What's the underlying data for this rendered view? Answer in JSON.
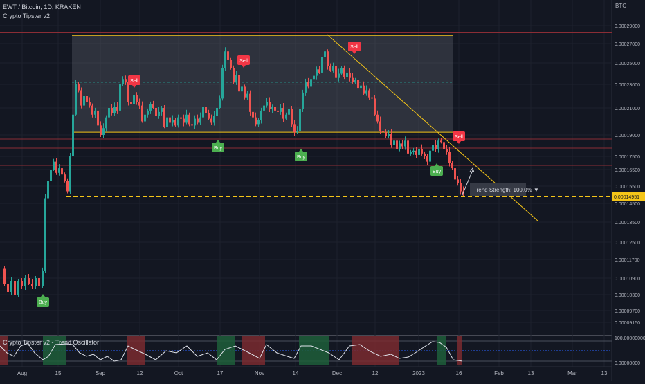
{
  "header": {
    "symbol_line": "EWT / Bitcoin, 1D, KRAKEN",
    "indicator_line": "Crypto Tipster v2",
    "oscillator_title": "Crypto Tipster v2 - Trend Oscillator",
    "currency": "BTC"
  },
  "price_axis": {
    "ticks": [
      "0.00029000",
      "0.00027000",
      "0.00025000",
      "0.00023000",
      "0.00021000",
      "0.00019000",
      "0.00017500",
      "0.00016500",
      "0.00015500",
      "0.00014500",
      "0.00013500",
      "0.00012500",
      "0.00011700",
      "0.00010900",
      "0.00010300",
      "0.00009700",
      "0.00009150"
    ],
    "current_price": "0.00014951",
    "current_price_color": "#f5c518"
  },
  "oscillator_axis": {
    "ticks": [
      "100.00000000",
      "0.00000000"
    ]
  },
  "time_axis": {
    "labels": [
      "Aug",
      "15",
      "Sep",
      "12",
      "Oct",
      "17",
      "Nov",
      "14",
      "Dec",
      "12",
      "2023",
      "16",
      "Feb",
      "13",
      "Mar",
      "13"
    ]
  },
  "signals": [
    {
      "label": "Buy",
      "type": "buy"
    },
    {
      "label": "Buy",
      "type": "buy"
    },
    {
      "label": "Buy",
      "type": "buy"
    },
    {
      "label": "Buy",
      "type": "buy"
    },
    {
      "label": "Sell",
      "type": "sell"
    },
    {
      "label": "Sell",
      "type": "sell"
    },
    {
      "label": "Sell",
      "type": "sell"
    },
    {
      "label": "Sell",
      "type": "sell"
    }
  ],
  "trend_strength": {
    "label": "Trend Strength: 100.0% ▼"
  },
  "colors": {
    "background": "#131722",
    "up": "#26a69a",
    "down": "#ef5350",
    "buy": "#4caf50",
    "sell": "#f23645",
    "trendline": "#f5c518",
    "range_box": "rgba(120,123,134,0.28)"
  },
  "chart_data": {
    "type": "candlestick",
    "title": "EWT / Bitcoin, 1D, KRAKEN",
    "ylabel": "BTC",
    "ylim": [
      9e-05,
      0.0003
    ],
    "price_series": [
      {
        "name": "EWT / Bitcoin",
        "approx_path": [
          [
            0,
            0.000113
          ],
          [
            5,
            0.000107
          ],
          [
            10,
            0.000104
          ],
          [
            15,
            0.000108
          ],
          [
            20,
            0.000103
          ],
          [
            25,
            0.000108
          ],
          [
            30,
            0.000106
          ],
          [
            35,
            0.000109
          ],
          [
            40,
            0.000107
          ],
          [
            45,
            0.000106
          ],
          [
            50,
            0.000109
          ],
          [
            55,
            0.000106
          ],
          [
            60,
            0.000112
          ],
          [
            64,
            0.000148
          ],
          [
            68,
            0.000158
          ],
          [
            72,
            0.000165
          ],
          [
            76,
            0.000171
          ],
          [
            80,
            0.000163
          ],
          [
            84,
            0.000166
          ],
          [
            88,
            0.000162
          ],
          [
            92,
            0.000158
          ],
          [
            96,
            0.000152
          ],
          [
            100,
            0.000175
          ],
          [
            104,
            0.000205
          ],
          [
            108,
            0.00023
          ],
          [
            112,
            0.000225
          ],
          [
            116,
            0.000212
          ],
          [
            120,
            0.00022
          ],
          [
            124,
            0.000215
          ],
          [
            128,
            0.000212
          ],
          [
            132,
            0.000205
          ],
          [
            136,
            0.000208
          ],
          [
            140,
            0.000197
          ],
          [
            144,
            0.00019
          ],
          [
            148,
            0.000195
          ],
          [
            152,
            0.000203
          ],
          [
            156,
            0.00021
          ],
          [
            160,
            0.000206
          ],
          [
            164,
            0.000211
          ],
          [
            168,
            0.000208
          ],
          [
            172,
            0.00023
          ],
          [
            176,
            0.000235
          ],
          [
            180,
            0.000232
          ],
          [
            184,
            0.000215
          ],
          [
            188,
            0.000213
          ],
          [
            192,
            0.000221
          ],
          [
            196,
            0.000215
          ],
          [
            200,
            0.000212
          ],
          [
            204,
            0.0002
          ],
          [
            208,
            0.000205
          ],
          [
            212,
            0.000208
          ],
          [
            216,
            0.000213
          ],
          [
            220,
            0.00021
          ],
          [
            224,
            0.000204
          ],
          [
            228,
            0.000207
          ],
          [
            232,
            0.00021
          ],
          [
            236,
            0.000196
          ],
          [
            240,
            0.000203
          ],
          [
            244,
            0.000199
          ],
          [
            248,
            0.000201
          ],
          [
            252,
            0.000197
          ],
          [
            256,
            0.000203
          ],
          [
            260,
            0.000202
          ],
          [
            264,
            0.000199
          ],
          [
            268,
            0.000205
          ],
          [
            272,
            0.000198
          ],
          [
            276,
            0.000197
          ],
          [
            280,
            0.000202
          ],
          [
            284,
            0.000199
          ],
          [
            288,
            0.000203
          ],
          [
            292,
            0.000211
          ],
          [
            296,
            0.000206
          ],
          [
            300,
            0.000202
          ],
          [
            304,
            0.000199
          ],
          [
            308,
            0.000204
          ],
          [
            312,
            0.00021
          ],
          [
            316,
            0.000218
          ],
          [
            320,
            0.000245
          ],
          [
            324,
            0.000262
          ],
          [
            328,
            0.000253
          ],
          [
            332,
            0.000245
          ],
          [
            336,
            0.000232
          ],
          [
            340,
            0.000239
          ],
          [
            344,
            0.000224
          ],
          [
            348,
            0.000228
          ],
          [
            352,
            0.000219
          ],
          [
            356,
            0.000222
          ],
          [
            360,
            0.000207
          ],
          [
            364,
            0.000203
          ],
          [
            368,
            0.000198
          ],
          [
            372,
            0.000201
          ],
          [
            376,
            0.000208
          ],
          [
            380,
            0.000212
          ],
          [
            384,
            0.000215
          ],
          [
            388,
            0.000209
          ],
          [
            392,
            0.000211
          ],
          [
            396,
            0.000208
          ],
          [
            400,
            0.000207
          ],
          [
            404,
            0.00021
          ],
          [
            408,
            0.000202
          ],
          [
            412,
            0.000205
          ],
          [
            416,
            0.000209
          ],
          [
            420,
            0.000198
          ],
          [
            424,
            0.000192
          ],
          [
            428,
            0.000193
          ],
          [
            432,
            0.000209
          ],
          [
            436,
            0.000223
          ],
          [
            440,
            0.000232
          ],
          [
            444,
            0.000228
          ],
          [
            448,
            0.000235
          ],
          [
            452,
            0.000238
          ],
          [
            456,
            0.000244
          ],
          [
            460,
            0.000241
          ],
          [
            464,
            0.000256
          ],
          [
            468,
            0.000262
          ],
          [
            472,
            0.000247
          ],
          [
            476,
            0.000243
          ],
          [
            480,
            0.000247
          ],
          [
            484,
            0.000236
          ],
          [
            488,
            0.00024
          ],
          [
            492,
            0.000245
          ],
          [
            496,
            0.000237
          ],
          [
            500,
            0.000241
          ],
          [
            504,
            0.000236
          ],
          [
            508,
            0.000232
          ],
          [
            512,
            0.000234
          ],
          [
            516,
            0.000227
          ],
          [
            520,
            0.000229
          ],
          [
            524,
            0.000222
          ],
          [
            528,
            0.000225
          ],
          [
            532,
            0.000219
          ],
          [
            536,
            0.000218
          ],
          [
            540,
            0.000205
          ],
          [
            544,
            0.0002
          ],
          [
            548,
            0.000193
          ],
          [
            552,
            0.000192
          ],
          [
            556,
            0.000189
          ],
          [
            560,
            0.000191
          ],
          [
            564,
            0.000183
          ],
          [
            568,
            0.000186
          ],
          [
            572,
            0.00018
          ],
          [
            576,
            0.000184
          ],
          [
            580,
            0.000182
          ],
          [
            584,
            0.000186
          ],
          [
            588,
            0.000177
          ],
          [
            592,
            0.000178
          ],
          [
            596,
            0.000179
          ],
          [
            600,
            0.000176
          ],
          [
            604,
            0.00018
          ],
          [
            608,
            0.000177
          ],
          [
            612,
            0.000175
          ],
          [
            616,
            0.000171
          ],
          [
            620,
            0.000179
          ],
          [
            624,
            0.000183
          ],
          [
            628,
            0.00018
          ],
          [
            632,
            0.000186
          ],
          [
            636,
            0.000185
          ],
          [
            640,
            0.00018
          ],
          [
            644,
            0.000178
          ],
          [
            648,
            0.00017
          ],
          [
            652,
            0.000166
          ],
          [
            656,
            0.000159
          ],
          [
            660,
            0.000157
          ],
          [
            664,
            0.000152
          ],
          [
            668,
            0.00015
          ]
        ]
      }
    ],
    "horizontal_levels": [
      0.000285,
      0.00019,
      0.000179,
      0.000168,
      0.00015
    ],
    "current_price": 0.00014951,
    "range_box": {
      "top": 0.000279,
      "bottom": 0.000192,
      "mid": 0.000232
    },
    "oscillator": {
      "name": "Trend Oscillator",
      "ylim": [
        0,
        100
      ]
    }
  }
}
